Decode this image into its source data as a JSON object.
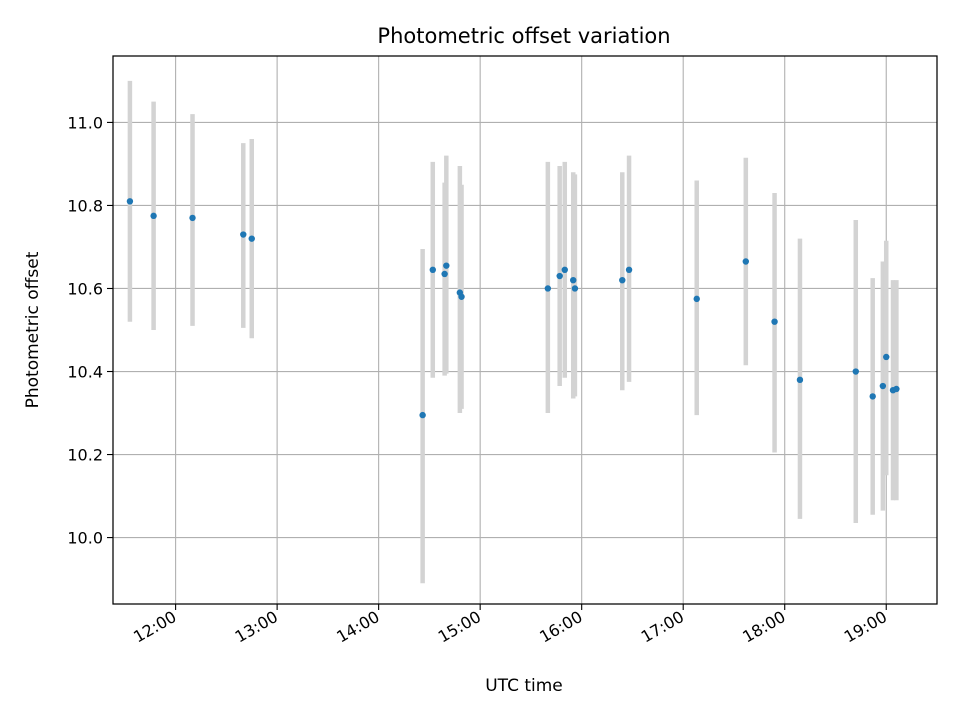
{
  "chart_data": {
    "type": "scatter",
    "title": "Photometric offset variation",
    "xlabel": "UTC time",
    "ylabel": "Photometric offset",
    "x_format": "HH:MM",
    "xlim": [
      "11:23",
      "19:30"
    ],
    "ylim": [
      9.84,
      11.16
    ],
    "x_ticks": [
      "12:00",
      "13:00",
      "14:00",
      "15:00",
      "16:00",
      "17:00",
      "18:00",
      "19:00"
    ],
    "y_ticks": [
      "10.0",
      "10.2",
      "10.4",
      "10.6",
      "10.8",
      "11.0"
    ],
    "grid": true,
    "colors": {
      "point": "#1f77b4",
      "errorbar": "#d3d3d3",
      "grid": "#b0b0b0",
      "axes": "#000000"
    },
    "points": [
      {
        "t": "11:33",
        "y": 10.81,
        "lo": 10.52,
        "hi": 11.1
      },
      {
        "t": "11:47",
        "y": 10.775,
        "lo": 10.5,
        "hi": 11.05
      },
      {
        "t": "12:10",
        "y": 10.77,
        "lo": 10.51,
        "hi": 11.02
      },
      {
        "t": "12:40",
        "y": 10.73,
        "lo": 10.505,
        "hi": 10.95
      },
      {
        "t": "12:45",
        "y": 10.72,
        "lo": 10.48,
        "hi": 10.96
      },
      {
        "t": "14:26",
        "y": 10.295,
        "lo": 9.89,
        "hi": 10.695
      },
      {
        "t": "14:32",
        "y": 10.645,
        "lo": 10.385,
        "hi": 10.905
      },
      {
        "t": "14:39",
        "y": 10.635,
        "lo": 10.39,
        "hi": 10.855
      },
      {
        "t": "14:40",
        "y": 10.655,
        "lo": 10.395,
        "hi": 10.92
      },
      {
        "t": "14:48",
        "y": 10.59,
        "lo": 10.3,
        "hi": 10.895
      },
      {
        "t": "14:49",
        "y": 10.58,
        "lo": 10.31,
        "hi": 10.85
      },
      {
        "t": "15:40",
        "y": 10.6,
        "lo": 10.3,
        "hi": 10.905
      },
      {
        "t": "15:47",
        "y": 10.63,
        "lo": 10.365,
        "hi": 10.895
      },
      {
        "t": "15:50",
        "y": 10.645,
        "lo": 10.385,
        "hi": 10.905
      },
      {
        "t": "15:55",
        "y": 10.62,
        "lo": 10.335,
        "hi": 10.88
      },
      {
        "t": "15:56",
        "y": 10.6,
        "lo": 10.34,
        "hi": 10.875
      },
      {
        "t": "16:24",
        "y": 10.62,
        "lo": 10.355,
        "hi": 10.88
      },
      {
        "t": "16:28",
        "y": 10.645,
        "lo": 10.375,
        "hi": 10.92
      },
      {
        "t": "17:08",
        "y": 10.575,
        "lo": 10.295,
        "hi": 10.86
      },
      {
        "t": "17:37",
        "y": 10.665,
        "lo": 10.415,
        "hi": 10.915
      },
      {
        "t": "17:54",
        "y": 10.52,
        "lo": 10.205,
        "hi": 10.83
      },
      {
        "t": "18:09",
        "y": 10.38,
        "lo": 10.045,
        "hi": 10.72
      },
      {
        "t": "18:42",
        "y": 10.4,
        "lo": 10.035,
        "hi": 10.765
      },
      {
        "t": "18:52",
        "y": 10.34,
        "lo": 10.055,
        "hi": 10.625
      },
      {
        "t": "18:58",
        "y": 10.365,
        "lo": 10.065,
        "hi": 10.665
      },
      {
        "t": "19:00",
        "y": 10.435,
        "lo": 10.15,
        "hi": 10.715
      },
      {
        "t": "19:04",
        "y": 10.355,
        "lo": 10.09,
        "hi": 10.62
      },
      {
        "t": "19:06",
        "y": 10.358,
        "lo": 10.09,
        "hi": 10.62
      }
    ]
  }
}
